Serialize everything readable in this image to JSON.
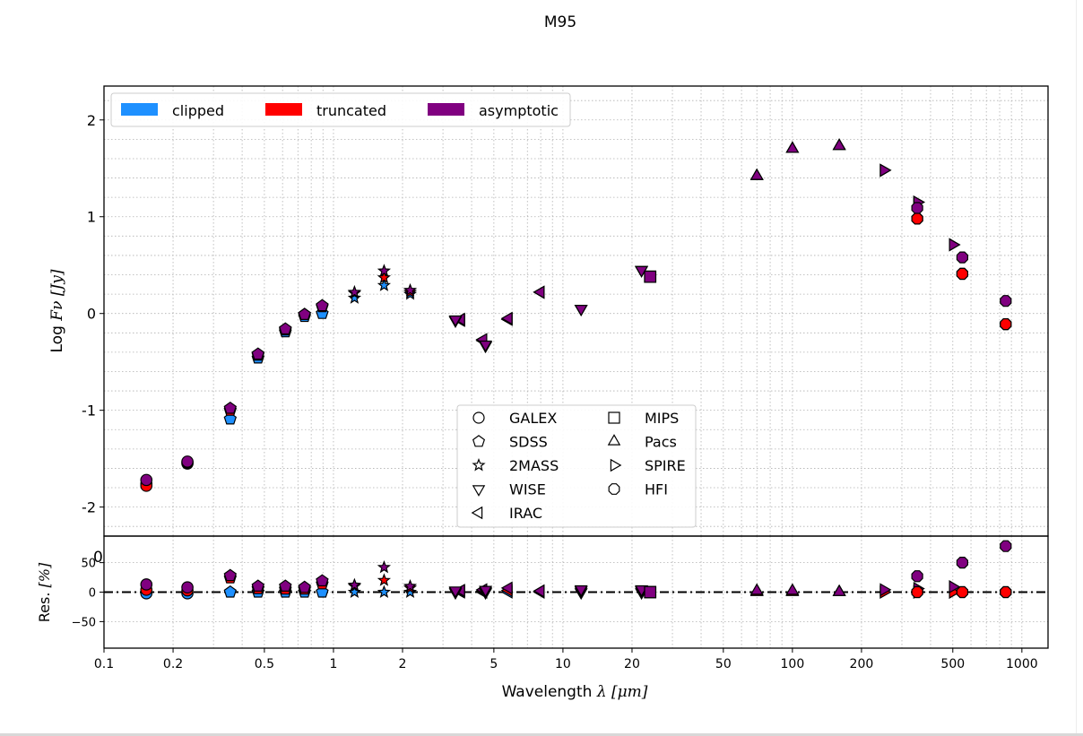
{
  "chart_data": [
    {
      "type": "scatter",
      "title": "M95",
      "xscale": "log",
      "xlim": [
        0.1,
        1300
      ],
      "ylim": [
        -2.3,
        2.35
      ],
      "ylabel_prefix": "Log ",
      "ylabel_math": "Fν [Jy]",
      "xlabel_prefix": "Wavelength ",
      "xlabel_math": "λ [μm]",
      "x_ticks": [
        {
          "v": 0.1,
          "label": "0.1"
        },
        {
          "v": 0.2,
          "label": "0.2"
        },
        {
          "v": 0.5,
          "label": "0.5"
        },
        {
          "v": 1,
          "label": "1"
        },
        {
          "v": 2,
          "label": "2"
        },
        {
          "v": 5,
          "label": "5"
        },
        {
          "v": 10,
          "label": "10"
        },
        {
          "v": 20,
          "label": "20"
        },
        {
          "v": 50,
          "label": "50"
        },
        {
          "v": 100,
          "label": "100"
        },
        {
          "v": 200,
          "label": "200"
        },
        {
          "v": 500,
          "label": "500"
        },
        {
          "v": 1000,
          "label": "1000"
        }
      ],
      "y_ticks": [
        {
          "v": -2,
          "label": "-2"
        },
        {
          "v": -1,
          "label": "-1"
        },
        {
          "v": 0,
          "label": "0"
        },
        {
          "v": 1,
          "label": "1"
        },
        {
          "v": 2,
          "label": "2"
        }
      ],
      "grid": true,
      "series_legend": {
        "placement": "top-left",
        "entries": [
          {
            "name": "clipped",
            "color": "#1e90ff"
          },
          {
            "name": "truncated",
            "color": "#ff0000"
          },
          {
            "name": "asymptotic",
            "color": "#800080"
          }
        ]
      },
      "marker_legend": {
        "placement": "lower-center",
        "entries": [
          {
            "name": "GALEX",
            "marker": "circle"
          },
          {
            "name": "SDSS",
            "marker": "pentagon"
          },
          {
            "name": "2MASS",
            "marker": "star"
          },
          {
            "name": "WISE",
            "marker": "triangle-down"
          },
          {
            "name": "IRAC",
            "marker": "triangle-left"
          },
          {
            "name": "MIPS",
            "marker": "square"
          },
          {
            "name": "Pacs",
            "marker": "triangle-up"
          },
          {
            "name": "SPIRE",
            "marker": "triangle-right"
          },
          {
            "name": "HFI",
            "marker": "octagon"
          }
        ]
      },
      "points": [
        {
          "band": "GALEX",
          "marker": "circle",
          "x": 0.153,
          "clipped": -1.76,
          "truncated": -1.78,
          "asymptotic": -1.72
        },
        {
          "band": "GALEX",
          "marker": "circle",
          "x": 0.231,
          "clipped": -1.55,
          "truncated": -1.54,
          "asymptotic": -1.53
        },
        {
          "band": "SDSS",
          "marker": "pentagon",
          "x": 0.355,
          "clipped": -1.09,
          "truncated": -1.0,
          "asymptotic": -0.98
        },
        {
          "band": "SDSS",
          "marker": "pentagon",
          "x": 0.469,
          "clipped": -0.46,
          "truncated": -0.43,
          "asymptotic": -0.42
        },
        {
          "band": "SDSS",
          "marker": "pentagon",
          "x": 0.617,
          "clipped": -0.19,
          "truncated": -0.17,
          "asymptotic": -0.16
        },
        {
          "band": "SDSS",
          "marker": "pentagon",
          "x": 0.748,
          "clipped": -0.03,
          "truncated": -0.01,
          "asymptotic": -0.01
        },
        {
          "band": "SDSS",
          "marker": "pentagon",
          "x": 0.893,
          "clipped": 0.0,
          "truncated": 0.07,
          "asymptotic": 0.08
        },
        {
          "band": "2MASS",
          "marker": "star",
          "x": 1.235,
          "clipped": 0.16,
          "truncated": 0.21,
          "asymptotic": 0.22
        },
        {
          "band": "2MASS",
          "marker": "star",
          "x": 1.662,
          "clipped": 0.29,
          "truncated": 0.37,
          "asymptotic": 0.44
        },
        {
          "band": "2MASS",
          "marker": "star",
          "x": 2.159,
          "clipped": 0.2,
          "truncated": 0.22,
          "asymptotic": 0.24
        },
        {
          "band": "IRAC",
          "marker": "triangle-left",
          "x": 3.6,
          "clipped": -0.07,
          "truncated": -0.07,
          "asymptotic": -0.06
        },
        {
          "band": "WISE",
          "marker": "triangle-down",
          "x": 3.4,
          "clipped": -0.07,
          "truncated": -0.07,
          "asymptotic": -0.06
        },
        {
          "band": "IRAC",
          "marker": "triangle-left",
          "x": 4.5,
          "clipped": -0.28,
          "truncated": -0.28,
          "asymptotic": -0.27
        },
        {
          "band": "WISE",
          "marker": "triangle-down",
          "x": 4.6,
          "clipped": -0.33,
          "truncated": -0.33,
          "asymptotic": -0.32
        },
        {
          "band": "IRAC",
          "marker": "triangle-left",
          "x": 5.8,
          "clipped": -0.06,
          "truncated": -0.06,
          "asymptotic": -0.05
        },
        {
          "band": "IRAC",
          "marker": "triangle-left",
          "x": 8.0,
          "clipped": 0.22,
          "truncated": 0.22,
          "asymptotic": 0.22
        },
        {
          "band": "WISE",
          "marker": "triangle-down",
          "x": 12.0,
          "clipped": 0.05,
          "truncated": 0.05,
          "asymptotic": 0.05
        },
        {
          "band": "WISE",
          "marker": "triangle-down",
          "x": 22.0,
          "clipped": 0.45,
          "truncated": 0.45,
          "asymptotic": 0.45
        },
        {
          "band": "MIPS",
          "marker": "square",
          "x": 24.0,
          "clipped": 0.38,
          "truncated": 0.38,
          "asymptotic": 0.38
        },
        {
          "band": "Pacs",
          "marker": "triangle-up",
          "x": 70,
          "clipped": 1.42,
          "truncated": 1.42,
          "asymptotic": 1.42
        },
        {
          "band": "Pacs",
          "marker": "triangle-up",
          "x": 100,
          "clipped": 1.7,
          "truncated": 1.7,
          "asymptotic": 1.7
        },
        {
          "band": "Pacs",
          "marker": "triangle-up",
          "x": 160,
          "clipped": 1.73,
          "truncated": 1.73,
          "asymptotic": 1.73
        },
        {
          "band": "SPIRE",
          "marker": "triangle-right",
          "x": 250,
          "clipped": 1.48,
          "truncated": 1.48,
          "asymptotic": 1.48
        },
        {
          "band": "SPIRE",
          "marker": "triangle-right",
          "x": 350,
          "clipped": 1.15,
          "truncated": 1.15,
          "asymptotic": 1.15
        },
        {
          "band": "SPIRE",
          "marker": "triangle-right",
          "x": 500,
          "clipped": 0.71,
          "truncated": 0.71,
          "asymptotic": 0.71
        },
        {
          "band": "HFI",
          "marker": "octagon",
          "x": 350,
          "clipped": 0.98,
          "truncated": 0.98,
          "asymptotic": 1.09
        },
        {
          "band": "HFI",
          "marker": "octagon",
          "x": 550,
          "clipped": 0.41,
          "truncated": 0.41,
          "asymptotic": 0.58
        },
        {
          "band": "HFI",
          "marker": "octagon",
          "x": 850,
          "clipped": -0.11,
          "truncated": -0.11,
          "asymptotic": 0.13
        }
      ]
    },
    {
      "type": "scatter",
      "panel": "residuals",
      "ylabel": "Res.",
      "ylabel_math": "[%]",
      "ylim": [
        -95,
        95
      ],
      "y_ticks": [
        {
          "v": -50,
          "label": "−50"
        },
        {
          "v": 0,
          "label": "0"
        },
        {
          "v": 50,
          "label": "50"
        }
      ],
      "stray_label": "0",
      "reference_line": 0,
      "points": [
        {
          "marker": "circle",
          "x": 0.153,
          "clipped": -2,
          "truncated": 4,
          "asymptotic": 13
        },
        {
          "marker": "circle",
          "x": 0.231,
          "clipped": -2,
          "truncated": 3,
          "asymptotic": 8
        },
        {
          "marker": "pentagon",
          "x": 0.355,
          "clipped": 0,
          "truncated": 24,
          "asymptotic": 28
        },
        {
          "marker": "pentagon",
          "x": 0.469,
          "clipped": 0,
          "truncated": 6,
          "asymptotic": 10
        },
        {
          "marker": "pentagon",
          "x": 0.617,
          "clipped": 0,
          "truncated": 5,
          "asymptotic": 10
        },
        {
          "marker": "pentagon",
          "x": 0.748,
          "clipped": 0,
          "truncated": 5,
          "asymptotic": 8
        },
        {
          "marker": "pentagon",
          "x": 0.893,
          "clipped": 0,
          "truncated": 14,
          "asymptotic": 19
        },
        {
          "marker": "star",
          "x": 1.235,
          "clipped": 0,
          "truncated": 10,
          "asymptotic": 12
        },
        {
          "marker": "star",
          "x": 1.662,
          "clipped": 0,
          "truncated": 20,
          "asymptotic": 42
        },
        {
          "marker": "star",
          "x": 2.159,
          "clipped": 0,
          "truncated": 7,
          "asymptotic": 10
        },
        {
          "marker": "triangle-left",
          "x": 3.6,
          "clipped": 0,
          "truncated": 2,
          "asymptotic": 3
        },
        {
          "marker": "triangle-down",
          "x": 3.4,
          "clipped": 0,
          "truncated": 2,
          "asymptotic": 3
        },
        {
          "marker": "triangle-left",
          "x": 4.5,
          "clipped": 0,
          "truncated": 2,
          "asymptotic": 4
        },
        {
          "marker": "triangle-down",
          "x": 4.6,
          "clipped": 0,
          "truncated": 2,
          "asymptotic": 4
        },
        {
          "marker": "triangle-left",
          "x": 5.8,
          "clipped": 0,
          "truncated": 3,
          "asymptotic": 7
        },
        {
          "marker": "triangle-left",
          "x": 8.0,
          "clipped": 0,
          "truncated": 1,
          "asymptotic": 2
        },
        {
          "marker": "triangle-down",
          "x": 12.0,
          "clipped": 0,
          "truncated": 3,
          "asymptotic": 5
        },
        {
          "marker": "triangle-down",
          "x": 22.0,
          "clipped": 0,
          "truncated": 3,
          "asymptotic": 5
        },
        {
          "marker": "square",
          "x": 24.0,
          "clipped": 0,
          "truncated": 0,
          "asymptotic": 0
        },
        {
          "marker": "triangle-up",
          "x": 70,
          "clipped": 0,
          "truncated": 0,
          "asymptotic": 2
        },
        {
          "marker": "triangle-up",
          "x": 100,
          "clipped": 0,
          "truncated": 0,
          "asymptotic": 2
        },
        {
          "marker": "triangle-up",
          "x": 160,
          "clipped": 0,
          "truncated": 0,
          "asymptotic": 0
        },
        {
          "marker": "triangle-right",
          "x": 250,
          "clipped": 0,
          "truncated": 0,
          "asymptotic": 4
        },
        {
          "marker": "triangle-right",
          "x": 350,
          "clipped": 0,
          "truncated": 0,
          "asymptotic": 6
        },
        {
          "marker": "triangle-right",
          "x": 500,
          "clipped": 0,
          "truncated": 0,
          "asymptotic": 9
        },
        {
          "marker": "octagon",
          "x": 350,
          "clipped": 0,
          "truncated": 0,
          "asymptotic": 27
        },
        {
          "marker": "octagon",
          "x": 550,
          "clipped": 0,
          "truncated": 0,
          "asymptotic": 50
        },
        {
          "marker": "octagon",
          "x": 850,
          "clipped": 0,
          "truncated": 0,
          "asymptotic": 78
        }
      ]
    }
  ]
}
